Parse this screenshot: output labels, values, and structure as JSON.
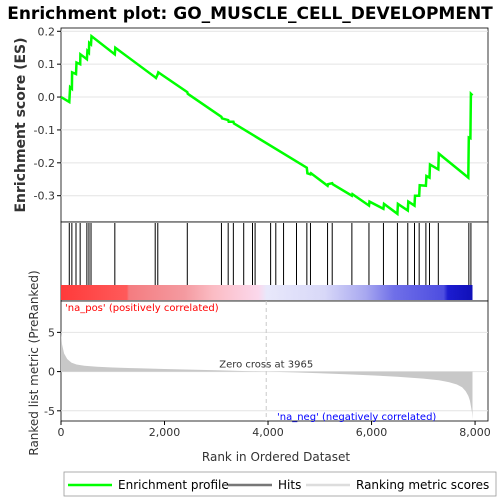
{
  "title": "Enrichment plot: GO_MUSCLE_CELL_DEVELOPMENT",
  "colors": {
    "enrichment_line": "#00ff00",
    "hits": "#000000",
    "pos_label": "#ff0000",
    "neg_label": "#0000ff",
    "metric_fill": "#c8c8c8",
    "zero_line": "#c8c8c8"
  },
  "chart_data": [
    {
      "type": "line",
      "name": "enrichment-profile",
      "ylabel": "Enrichment score (ES)",
      "xlim": [
        0,
        8250
      ],
      "ylim": [
        -0.38,
        0.21
      ],
      "y_ticks": [
        0.2,
        0.1,
        0.0,
        -0.1,
        -0.2,
        -0.3
      ],
      "y_tick_labels": [
        "0.2",
        "0.1",
        "0.0",
        "-0.1",
        "-0.2",
        "-0.3"
      ],
      "series": [
        {
          "name": "Enrichment profile",
          "x": [
            0,
            160,
            175,
            210,
            215,
            290,
            300,
            370,
            375,
            500,
            510,
            540,
            545,
            580,
            590,
            1040,
            1050,
            1820,
            1835,
            1870,
            1880,
            2440,
            2450,
            3100,
            3110,
            3230,
            3240,
            3330,
            3340,
            4750,
            4760,
            4820,
            4830,
            5150,
            5160,
            5240,
            5250,
            5620,
            5630,
            5950,
            5960,
            6230,
            6240,
            6500,
            6510,
            6700,
            6710,
            6830,
            6840,
            6920,
            6930,
            7050,
            7060,
            7120,
            7130,
            7290,
            7300,
            7870,
            7880,
            7910,
            7920,
            7950
          ],
          "y": [
            0.0,
            -0.015,
            0.03,
            0.025,
            0.075,
            0.07,
            0.105,
            0.1,
            0.13,
            0.115,
            0.14,
            0.135,
            0.165,
            0.16,
            0.185,
            0.13,
            0.15,
            0.06,
            0.058,
            0.07,
            0.075,
            0.015,
            0.01,
            -0.06,
            -0.065,
            -0.07,
            -0.075,
            -0.075,
            -0.08,
            -0.215,
            -0.232,
            -0.235,
            -0.232,
            -0.27,
            -0.265,
            -0.262,
            -0.265,
            -0.3,
            -0.295,
            -0.33,
            -0.318,
            -0.34,
            -0.325,
            -0.355,
            -0.325,
            -0.345,
            -0.318,
            -0.33,
            -0.3,
            -0.3,
            -0.268,
            -0.27,
            -0.24,
            -0.245,
            -0.205,
            -0.22,
            -0.172,
            -0.245,
            -0.123,
            -0.125,
            0.01,
            0.005
          ]
        }
      ]
    },
    {
      "type": "scatter",
      "name": "hits",
      "hit_positions": [
        160,
        210,
        290,
        370,
        500,
        540,
        580,
        1040,
        1820,
        1870,
        2440,
        3100,
        3230,
        3330,
        3530,
        3700,
        3750,
        4050,
        4150,
        4300,
        4550,
        4750,
        4820,
        5150,
        5240,
        5620,
        5950,
        6230,
        6500,
        6700,
        6830,
        6920,
        7050,
        7120,
        7290,
        7880,
        7920
      ]
    },
    {
      "type": "area",
      "name": "ranked-list-metric",
      "ylabel": "Ranked list metric (PreRanked)",
      "xlabel": "Rank in Ordered Dataset",
      "xlim": [
        0,
        8250
      ],
      "ylim": [
        -6.3,
        9.0
      ],
      "x_ticks": [
        0,
        2000,
        4000,
        6000,
        8000
      ],
      "x_tick_labels": [
        "0",
        "2,000",
        "4,000",
        "6,000",
        "8,000"
      ],
      "y_ticks": [
        5,
        0,
        -5
      ],
      "y_tick_labels": [
        "5",
        "0",
        "-5"
      ],
      "x": [
        0,
        20,
        60,
        120,
        200,
        300,
        450,
        700,
        1000,
        1500,
        2000,
        2500,
        3000,
        3500,
        3965,
        4500,
        5000,
        5500,
        6000,
        6500,
        7000,
        7300,
        7500,
        7650,
        7750,
        7820,
        7870,
        7900,
        7920,
        7940,
        7950
      ],
      "y": [
        5.2,
        3.5,
        2.3,
        1.6,
        1.15,
        0.9,
        0.75,
        0.62,
        0.52,
        0.42,
        0.33,
        0.25,
        0.17,
        0.08,
        0.0,
        -0.1,
        -0.2,
        -0.33,
        -0.48,
        -0.65,
        -0.9,
        -1.1,
        -1.35,
        -1.65,
        -2.0,
        -2.5,
        -3.1,
        -3.7,
        -4.4,
        -5.2,
        -6.1
      ]
    }
  ],
  "annotations": {
    "pos": "'na_pos' (positively correlated)",
    "neg": "'na_neg' (negatively correlated)",
    "zero_cross": "Zero cross at 3965",
    "zero_cross_rank": 3965
  },
  "legend": {
    "enrichment": "Enrichment profile",
    "hits": "Hits",
    "metric": "Ranking metric scores"
  }
}
